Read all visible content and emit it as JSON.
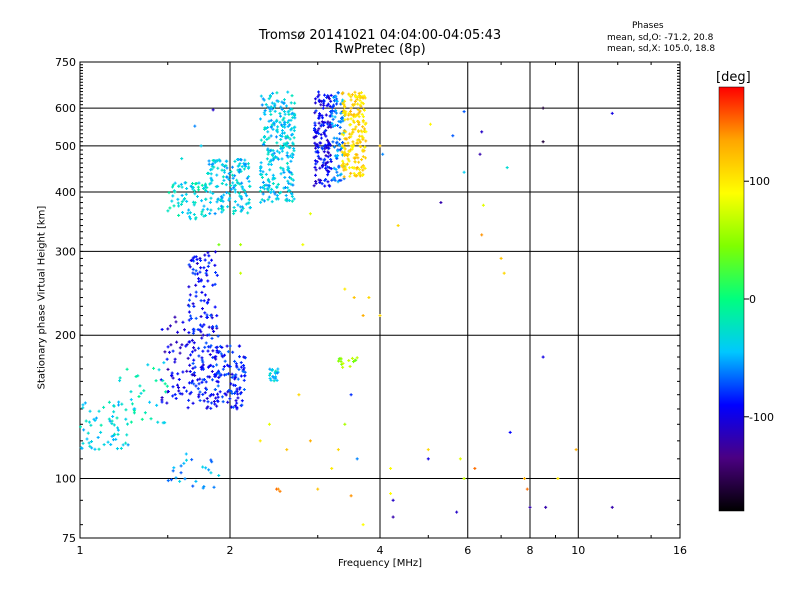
{
  "header": {
    "title_line1": "Tromsø 20141021 04:04:00-04:05:43",
    "title_line2": "RwPretec (8p)"
  },
  "phase_stats": {
    "title": "Phases",
    "line1": "mean, sd,O: -71.2, 20.8",
    "line2": "mean, sd,X: 105.0, 18.8"
  },
  "colorbar": {
    "unit": "[deg]",
    "ticks": [
      {
        "value": 100,
        "label": "100"
      },
      {
        "value": 0,
        "label": "0"
      },
      {
        "value": -100,
        "label": "-100"
      }
    ],
    "range": [
      -180,
      180
    ],
    "stops": [
      "#000000",
      "#4b0082",
      "#0000ff",
      "#00c8ff",
      "#00ff7f",
      "#7fff00",
      "#ffff00",
      "#ffa500",
      "#ff0000"
    ]
  },
  "chart_data": {
    "type": "scatter",
    "xlabel": "Frequency [MHz]",
    "ylabel": "Stationary phase Virtual Height [km]",
    "xscale": "log",
    "yscale": "log",
    "xlim": [
      1,
      16
    ],
    "ylim": [
      75,
      750
    ],
    "xticks": [
      1,
      2,
      4,
      8,
      16
    ],
    "xgrid": [
      2,
      4,
      6,
      8,
      10
    ],
    "xtick_labels": [
      "1",
      "2",
      "4",
      "6",
      "8",
      "10",
      "16"
    ],
    "xtick_label_values": [
      1,
      2,
      4,
      6,
      8,
      10,
      16
    ],
    "yticks": [
      75,
      100,
      200,
      300,
      400,
      500,
      600,
      750
    ],
    "ygrid": [
      100,
      200,
      300,
      400,
      500,
      600
    ],
    "ytick_labels": [
      "75",
      "100",
      "200",
      "300",
      "400",
      "500",
      "600",
      "750"
    ],
    "color_by": "phase [deg]",
    "clusters": [
      {
        "f": [
          2.3,
          2.7
        ],
        "h": [
          380,
          650
        ],
        "phase": -40,
        "n": 260
      },
      {
        "f": [
          2.95,
          3.2
        ],
        "h": [
          410,
          650
        ],
        "phase": -95,
        "n": 150
      },
      {
        "f": [
          3.2,
          3.4
        ],
        "h": [
          420,
          650
        ],
        "phase": -60,
        "n": 90
      },
      {
        "f": [
          3.35,
          3.75
        ],
        "h": [
          430,
          650
        ],
        "phase": 110,
        "n": 200
      },
      {
        "f": [
          1.8,
          2.2
        ],
        "h": [
          360,
          470
        ],
        "phase": -40,
        "n": 150
      },
      {
        "f": [
          1.5,
          1.8
        ],
        "h": [
          350,
          420
        ],
        "phase": -30,
        "n": 70
      },
      {
        "f": [
          1.65,
          1.9
        ],
        "h": [
          140,
          300
        ],
        "phase": -90,
        "n": 180
      },
      {
        "f": [
          1.85,
          2.15
        ],
        "h": [
          140,
          190
        ],
        "phase": -85,
        "n": 110
      },
      {
        "f": [
          1.45,
          1.7
        ],
        "h": [
          140,
          220
        ],
        "phase": -100,
        "n": 60
      },
      {
        "f": [
          1.0,
          1.25
        ],
        "h": [
          115,
          145
        ],
        "phase": -35,
        "n": 60
      },
      {
        "f": [
          1.2,
          1.5
        ],
        "h": [
          130,
          180
        ],
        "phase": -25,
        "n": 35
      },
      {
        "f": [
          1.5,
          1.9
        ],
        "h": [
          95,
          115
        ],
        "phase": -55,
        "n": 25
      },
      {
        "f": [
          3.3,
          3.6
        ],
        "h": [
          170,
          180
        ],
        "phase": 55,
        "n": 15
      },
      {
        "f": [
          2.4,
          2.5
        ],
        "h": [
          160,
          170
        ],
        "phase": -40,
        "n": 20
      }
    ],
    "points": [
      {
        "f": 3.65,
        "h": 630,
        "phase": 110
      },
      {
        "f": 3.5,
        "h": 600,
        "phase": 120
      },
      {
        "f": 3.55,
        "h": 560,
        "phase": 105
      },
      {
        "f": 3.7,
        "h": 520,
        "phase": 100
      },
      {
        "f": 3.45,
        "h": 480,
        "phase": 115
      },
      {
        "f": 3.6,
        "h": 450,
        "phase": 130
      },
      {
        "f": 3.05,
        "h": 620,
        "phase": -110
      },
      {
        "f": 3.1,
        "h": 560,
        "phase": -95
      },
      {
        "f": 3.0,
        "h": 500,
        "phase": -100
      },
      {
        "f": 3.15,
        "h": 440,
        "phase": -90
      },
      {
        "f": 2.5,
        "h": 620,
        "phase": -40
      },
      {
        "f": 2.45,
        "h": 560,
        "phase": -45
      },
      {
        "f": 2.6,
        "h": 500,
        "phase": -35
      },
      {
        "f": 2.4,
        "h": 420,
        "phase": -40
      },
      {
        "f": 1.95,
        "h": 440,
        "phase": -45
      },
      {
        "f": 2.05,
        "h": 400,
        "phase": -40
      },
      {
        "f": 1.75,
        "h": 260,
        "phase": -85
      },
      {
        "f": 1.8,
        "h": 200,
        "phase": -95
      },
      {
        "f": 1.95,
        "h": 165,
        "phase": -80
      },
      {
        "f": 1.1,
        "h": 125,
        "phase": -35
      },
      {
        "f": 2.5,
        "h": 95,
        "phase": 140
      },
      {
        "f": 2.52,
        "h": 94,
        "phase": 145
      },
      {
        "f": 2.48,
        "h": 95,
        "phase": 150
      },
      {
        "f": 1.85,
        "h": 595,
        "phase": -110
      },
      {
        "f": 1.7,
        "h": 550,
        "phase": -60
      },
      {
        "f": 1.75,
        "h": 500,
        "phase": -40
      },
      {
        "f": 1.6,
        "h": 470,
        "phase": -30
      },
      {
        "f": 1.55,
        "h": 400,
        "phase": -20
      },
      {
        "f": 1.9,
        "h": 310,
        "phase": 40
      },
      {
        "f": 2.1,
        "h": 310,
        "phase": 60
      },
      {
        "f": 2.1,
        "h": 270,
        "phase": 70
      },
      {
        "f": 2.8,
        "h": 310,
        "phase": 85
      },
      {
        "f": 2.9,
        "h": 360,
        "phase": 80
      },
      {
        "f": 3.55,
        "h": 240,
        "phase": 120
      },
      {
        "f": 3.7,
        "h": 220,
        "phase": 130
      },
      {
        "f": 3.8,
        "h": 240,
        "phase": 110
      },
      {
        "f": 3.4,
        "h": 250,
        "phase": 100
      },
      {
        "f": 3.5,
        "h": 150,
        "phase": -80
      },
      {
        "f": 3.4,
        "h": 130,
        "phase": 60
      },
      {
        "f": 2.75,
        "h": 150,
        "phase": 110
      },
      {
        "f": 2.4,
        "h": 130,
        "phase": 80
      },
      {
        "f": 2.3,
        "h": 120,
        "phase": 100
      },
      {
        "f": 2.6,
        "h": 115,
        "phase": 120
      },
      {
        "f": 2.9,
        "h": 120,
        "phase": 130
      },
      {
        "f": 3.3,
        "h": 115,
        "phase": 110
      },
      {
        "f": 3.2,
        "h": 105,
        "phase": 100
      },
      {
        "f": 3.6,
        "h": 110,
        "phase": -60
      },
      {
        "f": 3.0,
        "h": 95,
        "phase": 120
      },
      {
        "f": 3.5,
        "h": 92,
        "phase": 140
      },
      {
        "f": 3.7,
        "h": 80,
        "phase": 90
      },
      {
        "f": 4.0,
        "h": 500,
        "phase": 120
      },
      {
        "f": 4.05,
        "h": 480,
        "phase": -60
      },
      {
        "f": 4.35,
        "h": 340,
        "phase": 110
      },
      {
        "f": 4.2,
        "h": 105,
        "phase": 90
      },
      {
        "f": 4.25,
        "h": 90,
        "phase": -110
      },
      {
        "f": 4.25,
        "h": 83,
        "phase": -120
      },
      {
        "f": 4.0,
        "h": 220,
        "phase": 110
      },
      {
        "f": 4.2,
        "h": 93,
        "phase": 90
      },
      {
        "f": 5.05,
        "h": 555,
        "phase": 95
      },
      {
        "f": 5.0,
        "h": 110,
        "phase": -100
      },
      {
        "f": 5.0,
        "h": 115,
        "phase": 110
      },
      {
        "f": 5.6,
        "h": 525,
        "phase": -70
      },
      {
        "f": 5.9,
        "h": 590,
        "phase": -70
      },
      {
        "f": 5.3,
        "h": 380,
        "phase": -120
      },
      {
        "f": 5.9,
        "h": 440,
        "phase": -40
      },
      {
        "f": 5.7,
        "h": 85,
        "phase": -110
      },
      {
        "f": 5.8,
        "h": 110,
        "phase": 80
      },
      {
        "f": 5.9,
        "h": 100,
        "phase": 70
      },
      {
        "f": 6.4,
        "h": 535,
        "phase": -110
      },
      {
        "f": 6.35,
        "h": 480,
        "phase": -120
      },
      {
        "f": 6.45,
        "h": 375,
        "phase": 80
      },
      {
        "f": 6.4,
        "h": 325,
        "phase": 140
      },
      {
        "f": 6.2,
        "h": 105,
        "phase": 150
      },
      {
        "f": 7.0,
        "h": 290,
        "phase": 120
      },
      {
        "f": 7.1,
        "h": 270,
        "phase": 110
      },
      {
        "f": 7.2,
        "h": 450,
        "phase": -30
      },
      {
        "f": 7.3,
        "h": 125,
        "phase": -90
      },
      {
        "f": 7.8,
        "h": 100,
        "phase": 130
      },
      {
        "f": 7.9,
        "h": 95,
        "phase": 150
      },
      {
        "f": 8.0,
        "h": 87,
        "phase": -120
      },
      {
        "f": 8.5,
        "h": 600,
        "phase": -160
      },
      {
        "f": 8.5,
        "h": 510,
        "phase": -160
      },
      {
        "f": 8.5,
        "h": 180,
        "phase": -100
      },
      {
        "f": 8.6,
        "h": 87,
        "phase": -120
      },
      {
        "f": 9.1,
        "h": 100,
        "phase": 100
      },
      {
        "f": 9.9,
        "h": 115,
        "phase": 130
      },
      {
        "f": 11.7,
        "h": 585,
        "phase": -100
      },
      {
        "f": 11.7,
        "h": 87,
        "phase": -120
      }
    ]
  }
}
